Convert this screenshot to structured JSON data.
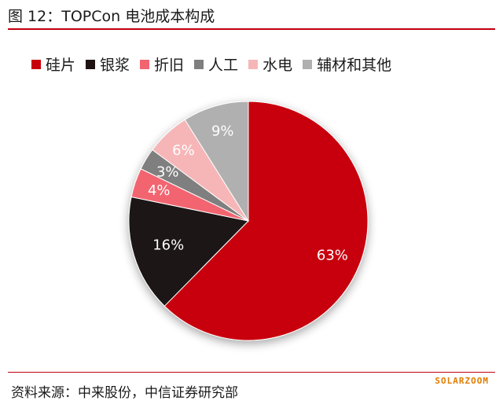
{
  "header": {
    "title": "图 12：TOPCon 电池成本构成"
  },
  "chart_data": {
    "type": "pie",
    "categories": [
      "硅片",
      "银浆",
      "折旧",
      "人工",
      "水电",
      "辅材和其他"
    ],
    "values": [
      63,
      16,
      4,
      3,
      6,
      9
    ],
    "value_labels": [
      "63%",
      "16%",
      "4%",
      "3%",
      "6%",
      "9%"
    ],
    "colors": [
      "#c8000c",
      "#1e1212",
      "#f26570",
      "#7f7f7f",
      "#f6b6b8",
      "#b0b0b0"
    ],
    "label_colors": [
      "#ffffff",
      "#ffffff",
      "#ffffff",
      "#ffffff",
      "#ffffff",
      "#ffffff"
    ],
    "start_angle_deg": 0,
    "direction": "clockwise",
    "legend_position": "top"
  },
  "footer": {
    "source": "资料来源：中来股份，中信证券研究部",
    "watermark": "SOLARZOOM"
  }
}
